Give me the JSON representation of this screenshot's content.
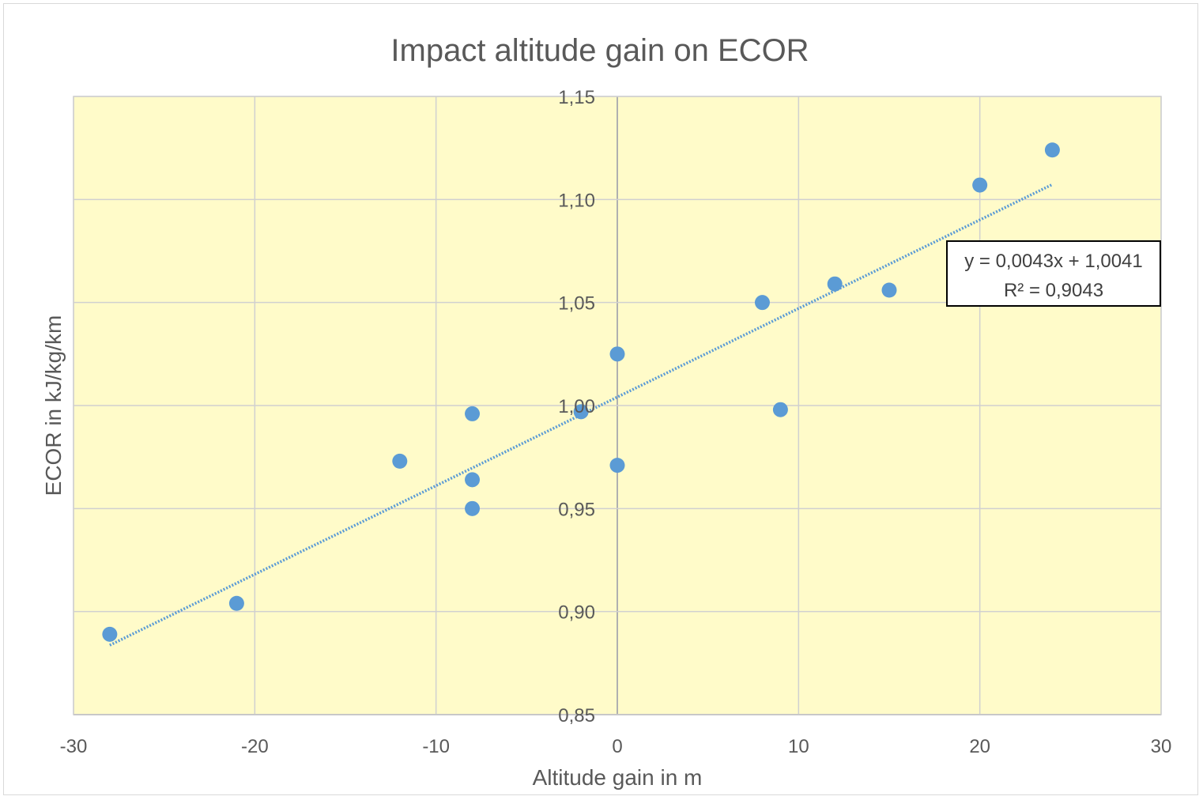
{
  "chart_data": {
    "type": "scatter",
    "title": "Impact altitude gain on ECOR",
    "xlabel": "Altitude gain in m",
    "ylabel": "ECOR in kJ/kg/km",
    "xlim": [
      -30,
      30
    ],
    "ylim": [
      0.85,
      1.15
    ],
    "x_ticks": [
      "-30",
      "-20",
      "-10",
      "0",
      "10",
      "20",
      "30"
    ],
    "y_ticks": [
      "0,85",
      "0,90",
      "0,95",
      "1,00",
      "1,05",
      "1,10",
      "1,15"
    ],
    "x_tick_values": [
      -30,
      -20,
      -10,
      0,
      10,
      20,
      30
    ],
    "y_tick_values": [
      0.85,
      0.9,
      0.95,
      1.0,
      1.05,
      1.1,
      1.15
    ],
    "grid": true,
    "plot_background": "#fffbc9",
    "marker_color": "#5b9bd5",
    "series": [
      {
        "points": [
          {
            "x": -28,
            "y": 0.889
          },
          {
            "x": -21,
            "y": 0.904
          },
          {
            "x": -12,
            "y": 0.973
          },
          {
            "x": -8,
            "y": 0.996
          },
          {
            "x": -8,
            "y": 0.964
          },
          {
            "x": -8,
            "y": 0.95
          },
          {
            "x": -2,
            "y": 0.997
          },
          {
            "x": 0,
            "y": 1.025
          },
          {
            "x": 0,
            "y": 0.971
          },
          {
            "x": 8,
            "y": 1.05
          },
          {
            "x": 9,
            "y": 0.998
          },
          {
            "x": 12,
            "y": 1.059
          },
          {
            "x": 15,
            "y": 1.056
          },
          {
            "x": 20,
            "y": 1.107
          },
          {
            "x": 24,
            "y": 1.124
          }
        ]
      }
    ],
    "trendline": {
      "type": "linear",
      "slope": 0.0043,
      "intercept": 1.0041,
      "x_range": [
        -28,
        24
      ],
      "equation": "y = 0,0043x + 1,0041",
      "r_squared": "R² = 0,9043"
    }
  }
}
